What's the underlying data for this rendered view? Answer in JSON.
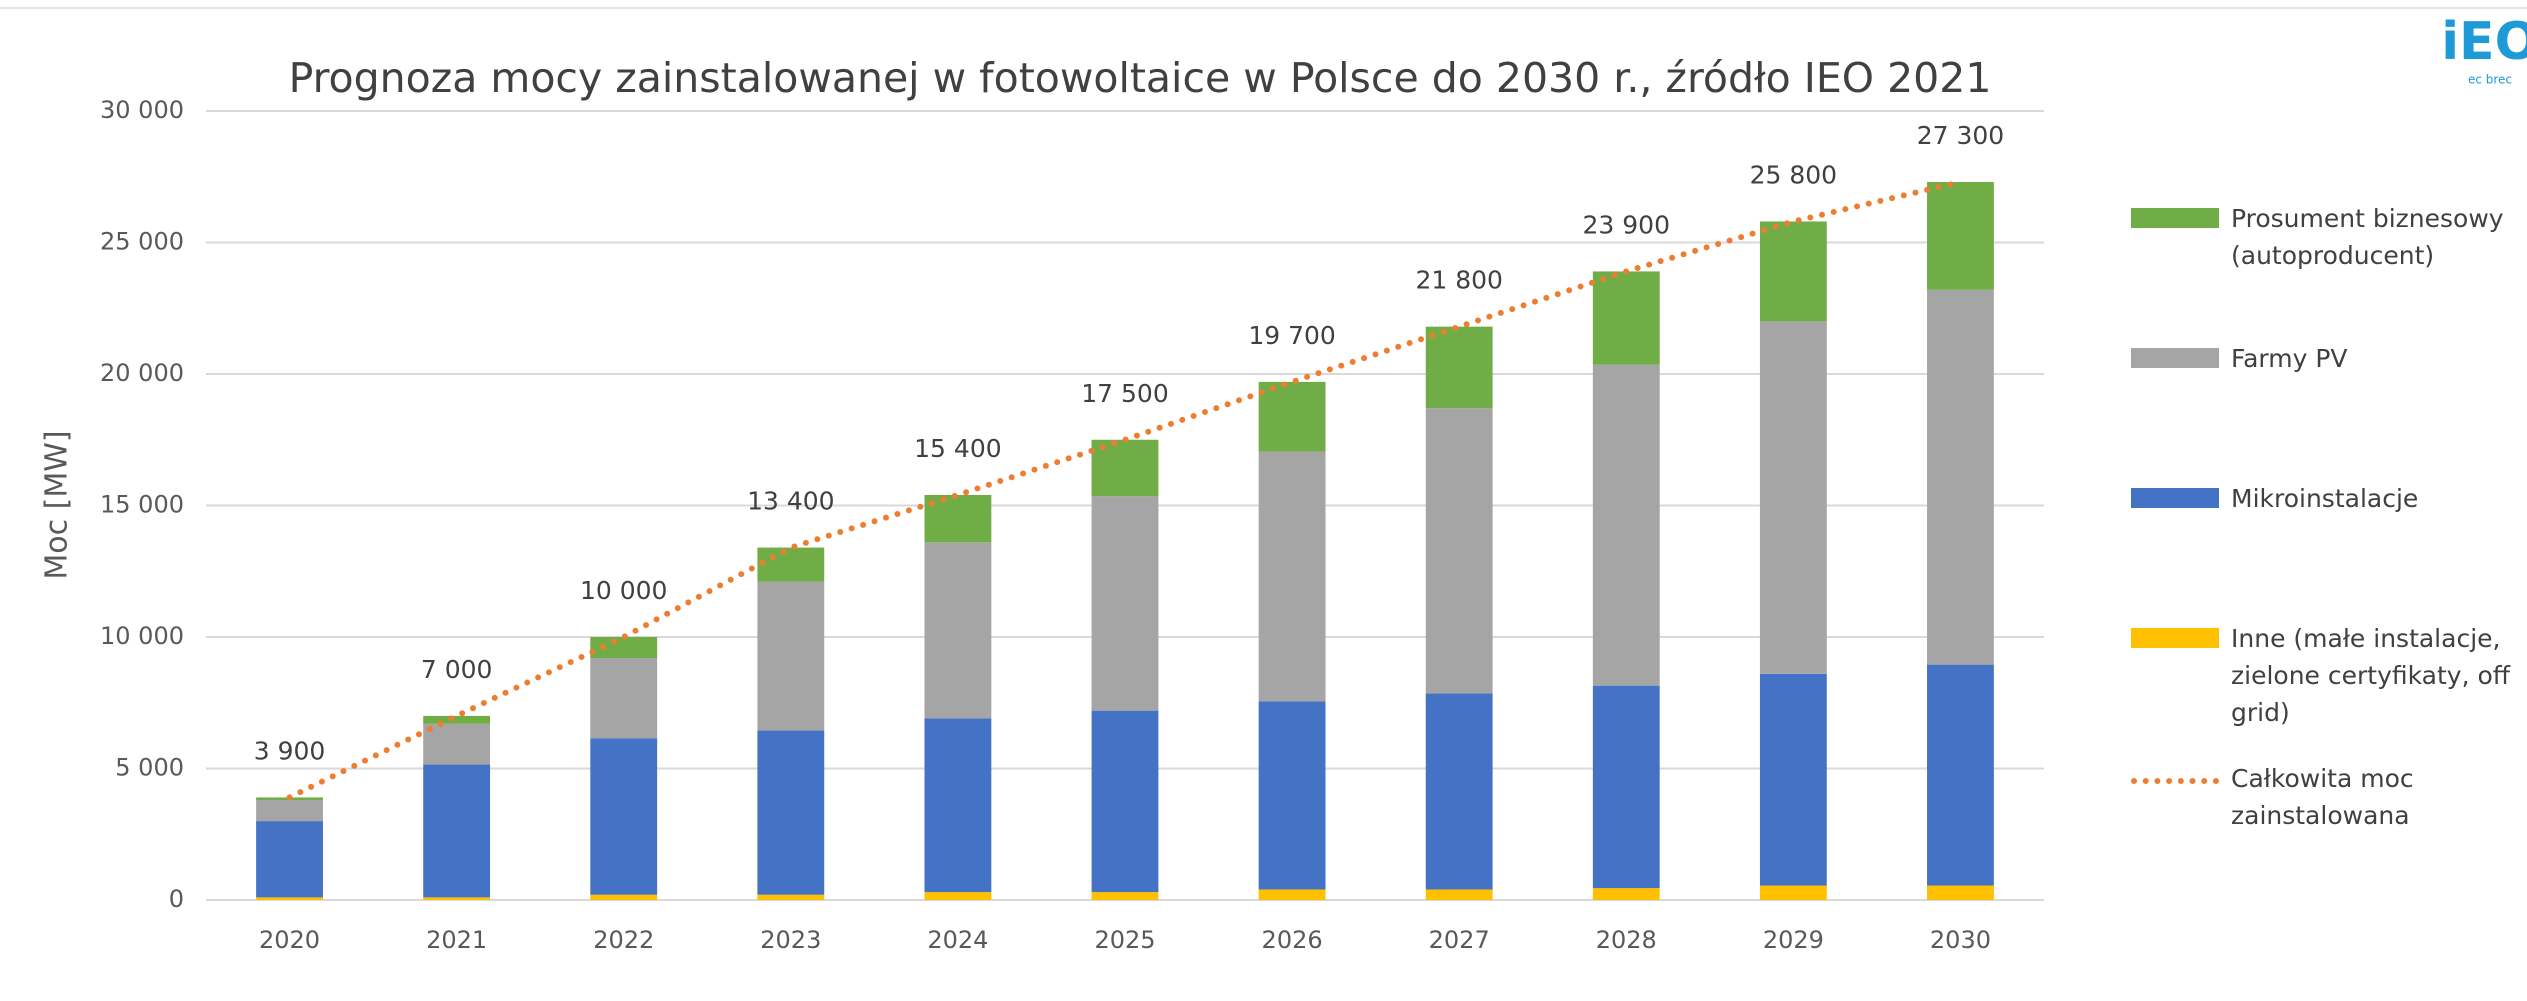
{
  "chart_data": {
    "type": "stacked-bar-line",
    "title": "Prognoza mocy zainstalowanej w fotowoltaice w Polsce do 2030 r., źródło IEO 2021",
    "y_label": "Moc  [MW]",
    "categories": [
      "2020",
      "2021",
      "2022",
      "2023",
      "2024",
      "2025",
      "2026",
      "2027",
      "2028",
      "2029",
      "2030"
    ],
    "series": [
      {
        "name": "Inne (małe instalacje, zielone certyfikaty, off grid)",
        "color": "#ffc000",
        "kind": "bar",
        "values": [
          100,
          100,
          200,
          200,
          300,
          300,
          400,
          400,
          450,
          550,
          550
        ]
      },
      {
        "name": "Mikroinstalacje",
        "color": "#4472c4",
        "kind": "bar",
        "values": [
          2900,
          5050,
          5950,
          6250,
          6600,
          6900,
          7150,
          7450,
          7700,
          8050,
          8400
        ]
      },
      {
        "name": "Farmy PV",
        "color": "#a5a5a5",
        "kind": "bar",
        "values": [
          800,
          1550,
          3050,
          5650,
          6700,
          8150,
          9500,
          10850,
          12200,
          13400,
          14250
        ]
      },
      {
        "name": "Prosument biznesowy (autoproducent)",
        "color": "#70ad47",
        "kind": "bar",
        "values": [
          100,
          300,
          800,
          1300,
          1800,
          2150,
          2650,
          3100,
          3550,
          3800,
          4100
        ]
      },
      {
        "name": "Całkowita moc zainstalowana",
        "color": "#ed7d31",
        "kind": "line",
        "values": [
          3900,
          7000,
          10000,
          13400,
          15400,
          17500,
          19700,
          21800,
          23900,
          25800,
          27300
        ],
        "value_labels": [
          "3 900",
          "7 000",
          "10 000",
          "13 400",
          "15 400",
          "17 500",
          "19 700",
          "21 800",
          "23 900",
          "25 800",
          "27 300"
        ]
      }
    ],
    "legend_order": [
      3,
      2,
      1,
      0,
      4
    ],
    "ylim": [
      0,
      30000
    ],
    "yticks": [
      0,
      {
        "value": 5000,
        "label": "5 000"
      },
      {
        "value": 10000,
        "label": "10 000"
      },
      {
        "value": 15000,
        "label": "15 000"
      },
      {
        "value": 20000,
        "label": "20 000"
      },
      {
        "value": 25000,
        "label": "25 000"
      },
      {
        "value": 30000,
        "label": "30 000"
      }
    ],
    "grid": true
  },
  "logo": {
    "text": "iEO",
    "subtext": "ec brec"
  }
}
